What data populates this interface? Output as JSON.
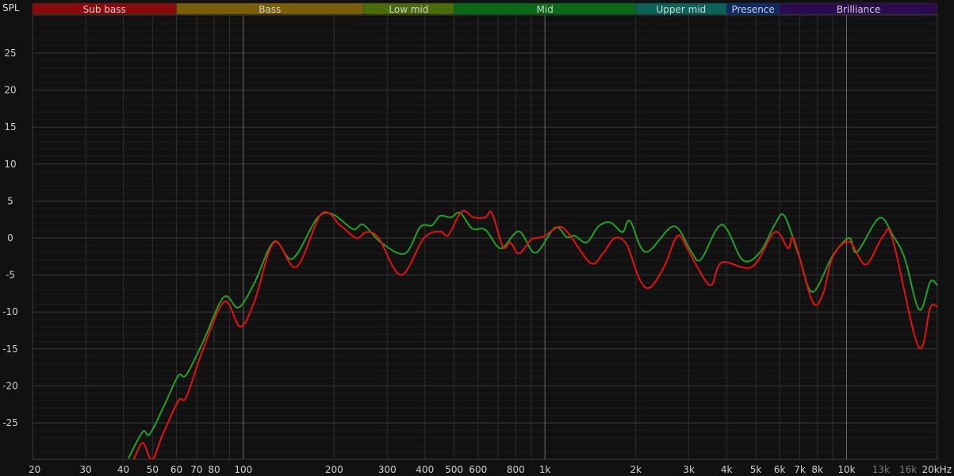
{
  "chart_data": {
    "type": "line",
    "ylabel": "SPL",
    "xscale": "log",
    "xlim": [
      20,
      20000
    ],
    "ylim": [
      -30,
      30
    ],
    "grid": true,
    "yticks": [
      25,
      20,
      15,
      10,
      5,
      0,
      -5,
      -10,
      -15,
      -20,
      -25
    ],
    "xticks": [
      {
        "v": 20,
        "label": "20"
      },
      {
        "v": 30,
        "label": "30"
      },
      {
        "v": 40,
        "label": "40"
      },
      {
        "v": 50,
        "label": "50"
      },
      {
        "v": 60,
        "label": "60"
      },
      {
        "v": 70,
        "label": "70"
      },
      {
        "v": 80,
        "label": "80"
      },
      {
        "v": 100,
        "label": "100"
      },
      {
        "v": 200,
        "label": "200"
      },
      {
        "v": 300,
        "label": "300"
      },
      {
        "v": 400,
        "label": "400"
      },
      {
        "v": 500,
        "label": "500"
      },
      {
        "v": 600,
        "label": "600"
      },
      {
        "v": 800,
        "label": "800"
      },
      {
        "v": 1000,
        "label": "1k"
      },
      {
        "v": 2000,
        "label": "2k"
      },
      {
        "v": 3000,
        "label": "3k"
      },
      {
        "v": 4000,
        "label": "4k"
      },
      {
        "v": 5000,
        "label": "5k"
      },
      {
        "v": 6000,
        "label": "6k"
      },
      {
        "v": 7000,
        "label": "7k"
      },
      {
        "v": 8000,
        "label": "8k"
      },
      {
        "v": 10000,
        "label": "10k"
      },
      {
        "v": 13000,
        "label": "13k",
        "dim": true
      },
      {
        "v": 16000,
        "label": "16k",
        "dim": true
      },
      {
        "v": 20000,
        "label": "20kHz"
      }
    ],
    "bands": [
      {
        "label": "Sub bass",
        "from": 20,
        "to": 60,
        "color": "#8a0a0c"
      },
      {
        "label": "Bass",
        "from": 60,
        "to": 250,
        "color": "#7b5f08"
      },
      {
        "label": "Low mid",
        "from": 250,
        "to": 500,
        "color": "#4a6c0c"
      },
      {
        "label": "Mid",
        "from": 500,
        "to": 2000,
        "color": "#0a6a18"
      },
      {
        "label": "Upper mid",
        "from": 2000,
        "to": 4000,
        "color": "#0b6258"
      },
      {
        "label": "Presence",
        "from": 4000,
        "to": 6000,
        "color": "#0e2a66"
      },
      {
        "label": "Brilliance",
        "from": 6000,
        "to": 20000,
        "color": "#2a0c4e"
      }
    ],
    "series": [
      {
        "color": "#22a02a",
        "points": [
          [
            41.6,
            -29.8
          ],
          [
            46.4,
            -26.2
          ],
          [
            49,
            -26.5
          ],
          [
            55.6,
            -22
          ],
          [
            60.9,
            -18.6
          ],
          [
            64.7,
            -18.5
          ],
          [
            73.6,
            -14
          ],
          [
            86.1,
            -8
          ],
          [
            96.4,
            -9.4
          ],
          [
            108.8,
            -6.1
          ],
          [
            126.5,
            -0.5
          ],
          [
            145.6,
            -2.8
          ],
          [
            176,
            2.7
          ],
          [
            198,
            3.2
          ],
          [
            231,
            1.2
          ],
          [
            250,
            1.8
          ],
          [
            286,
            -0.6
          ],
          [
            343,
            -2.1
          ],
          [
            386,
            1.5
          ],
          [
            422,
            1.7
          ],
          [
            449,
            3
          ],
          [
            487,
            2.8
          ],
          [
            524,
            3.4
          ],
          [
            573,
            1.3
          ],
          [
            635,
            1.1
          ],
          [
            714,
            -1.4
          ],
          [
            820,
            0.9
          ],
          [
            929,
            -2
          ],
          [
            1080,
            1.4
          ],
          [
            1182,
            0.1
          ],
          [
            1255,
            0.3
          ],
          [
            1375,
            -0.6
          ],
          [
            1506,
            1.6
          ],
          [
            1650,
            2.1
          ],
          [
            1807,
            0.8
          ],
          [
            1915,
            2.3
          ],
          [
            2160,
            -1.9
          ],
          [
            2670,
            1.6
          ],
          [
            3040,
            -1.7
          ],
          [
            3290,
            -2.9
          ],
          [
            3860,
            1.8
          ],
          [
            4530,
            -3
          ],
          [
            5170,
            -1.9
          ],
          [
            5780,
            1.8
          ],
          [
            6220,
            3
          ],
          [
            6950,
            -2.4
          ],
          [
            7710,
            -7.3
          ],
          [
            8990,
            -2.4
          ],
          [
            10200,
            0
          ],
          [
            10830,
            -1.9
          ],
          [
            12830,
            2.7
          ],
          [
            14220,
            0.4
          ],
          [
            15580,
            -2.7
          ],
          [
            17420,
            -9.7
          ],
          [
            18950,
            -5.9
          ],
          [
            20000,
            -6.4
          ]
        ]
      },
      {
        "color": "#e81010",
        "points": [
          [
            43.3,
            -30
          ],
          [
            46.4,
            -27.7
          ],
          [
            49.8,
            -30
          ],
          [
            54,
            -26.6
          ],
          [
            60.9,
            -22
          ],
          [
            64.7,
            -21.5
          ],
          [
            73.6,
            -15
          ],
          [
            86.6,
            -8.6
          ],
          [
            97.6,
            -12
          ],
          [
            108.8,
            -8.6
          ],
          [
            126.5,
            -0.6
          ],
          [
            150,
            -3.9
          ],
          [
            182,
            3.3
          ],
          [
            211,
            1.6
          ],
          [
            237,
            0
          ],
          [
            256,
            0.8
          ],
          [
            281,
            0
          ],
          [
            333,
            -5
          ],
          [
            397,
            0
          ],
          [
            449,
            0.9
          ],
          [
            478,
            0.4
          ],
          [
            530,
            3.6
          ],
          [
            579,
            2.8
          ],
          [
            635,
            2.8
          ],
          [
            667,
            3.4
          ],
          [
            726,
            -1.2
          ],
          [
            768,
            -0.6
          ],
          [
            820,
            -2.1
          ],
          [
            902,
            -0.2
          ],
          [
            987,
            0.2
          ],
          [
            1114,
            1.5
          ],
          [
            1203,
            0.5
          ],
          [
            1418,
            -3.4
          ],
          [
            1556,
            -2.1
          ],
          [
            1705,
            0
          ],
          [
            1867,
            -0.9
          ],
          [
            2060,
            -5.6
          ],
          [
            2230,
            -6.7
          ],
          [
            2490,
            -3.8
          ],
          [
            2750,
            0.3
          ],
          [
            2970,
            -1.5
          ],
          [
            3200,
            -3.9
          ],
          [
            3550,
            -6.4
          ],
          [
            3860,
            -3.3
          ],
          [
            4860,
            -3.9
          ],
          [
            5780,
            0.8
          ],
          [
            6400,
            -1.4
          ],
          [
            6700,
            -0.2
          ],
          [
            7710,
            -8.6
          ],
          [
            8360,
            -7.5
          ],
          [
            8990,
            -2.6
          ],
          [
            10200,
            -0.5
          ],
          [
            11570,
            -3.6
          ],
          [
            13230,
            0.3
          ],
          [
            14220,
            -0.2
          ],
          [
            17310,
            -14.7
          ],
          [
            18950,
            -9.4
          ],
          [
            20000,
            -9.3
          ]
        ]
      }
    ]
  }
}
